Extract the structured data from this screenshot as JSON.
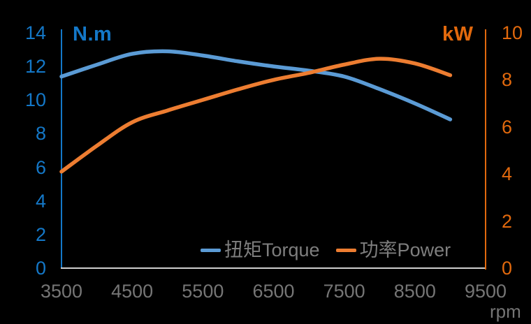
{
  "chart_data": {
    "type": "line",
    "x_unit_label": "rpm",
    "x": [
      3500,
      4000,
      4500,
      5000,
      5500,
      6000,
      6500,
      7000,
      7500,
      8000,
      8500,
      9000
    ],
    "series": [
      {
        "name": "扭矩Torque",
        "axis": "left",
        "unit": "N.m",
        "color": "#5B9BD5",
        "values": [
          11.4,
          12.1,
          12.75,
          12.9,
          12.65,
          12.3,
          12.0,
          11.75,
          11.4,
          10.65,
          9.8,
          8.85
        ]
      },
      {
        "name": "功率Power",
        "axis": "right",
        "unit": "kW",
        "color": "#ED7D31",
        "values": [
          4.1,
          5.2,
          6.2,
          6.7,
          7.15,
          7.6,
          8.0,
          8.3,
          8.65,
          8.9,
          8.7,
          8.2
        ]
      }
    ],
    "axes": {
      "left": {
        "label": "N.m",
        "ticks": [
          0,
          2,
          4,
          6,
          8,
          10,
          12,
          14
        ],
        "range": [
          0,
          14
        ],
        "color": "#1478C8"
      },
      "right": {
        "label": "kW",
        "ticks": [
          0,
          2,
          4,
          6,
          8,
          10
        ],
        "range": [
          0,
          10
        ],
        "color": "#E2690D"
      },
      "x": {
        "label": "rpm",
        "ticks": [
          3500,
          4500,
          5500,
          6500,
          7500,
          8500,
          9500
        ],
        "range": [
          3500,
          9500
        ],
        "text_color": "#757575",
        "line_color": "#CFCFCF"
      }
    },
    "legend": {
      "position": "bottom-center-inside",
      "text_color": "#7E7E7E"
    },
    "background": "#000000",
    "grid": false
  }
}
